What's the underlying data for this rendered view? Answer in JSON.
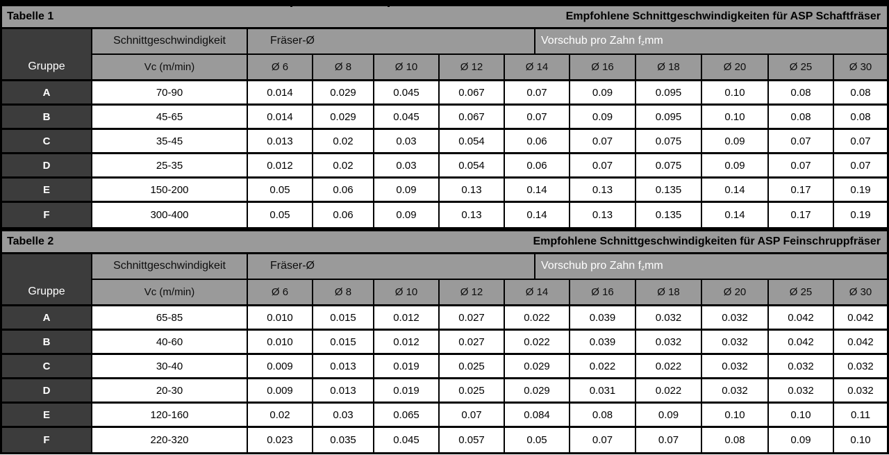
{
  "colors": {
    "header_gray": "#9a9a9a",
    "dark_cell": "#3c3c3c",
    "border": "#000000",
    "data_cell_bg": "#ffffff",
    "white_text": "#ffffff"
  },
  "tables": [
    {
      "tag": "Tabelle 1",
      "title": "Empfohlene Schnittgeschwindigkeiten für ASP Schaftfräser",
      "gruppe_label": "Gruppe",
      "speed_header": "Schnittgeschwindigkeit",
      "vc_header": "Vc (m/min)",
      "fraeser_header": "Fräser-Ø",
      "vorschub_prefix": "Vorschub pro Zahn f",
      "vorschub_sub": "z",
      "vorschub_suffix": " mm",
      "diameters": [
        "Ø 6",
        "Ø 8",
        "Ø 10",
        "Ø 12",
        "Ø 14",
        "Ø 16",
        "Ø 18",
        "Ø 20",
        "Ø 25",
        "Ø 30"
      ],
      "rows": [
        {
          "group": "A",
          "vc": "70-90",
          "values": [
            "0.014",
            "0.029",
            "0.045",
            "0.067",
            "0.07",
            "0.09",
            "0.095",
            "0.10",
            "0.08",
            "0.08"
          ]
        },
        {
          "group": "B",
          "vc": "45-65",
          "values": [
            "0.014",
            "0.029",
            "0.045",
            "0.067",
            "0.07",
            "0.09",
            "0.095",
            "0.10",
            "0.08",
            "0.08"
          ]
        },
        {
          "group": "C",
          "vc": "35-45",
          "values": [
            "0.013",
            "0.02",
            "0.03",
            "0.054",
            "0.06",
            "0.07",
            "0.075",
            "0.09",
            "0.07",
            "0.07"
          ]
        },
        {
          "group": "D",
          "vc": "25-35",
          "values": [
            "0.012",
            "0.02",
            "0.03",
            "0.054",
            "0.06",
            "0.07",
            "0.075",
            "0.09",
            "0.07",
            "0.07"
          ]
        },
        {
          "group": "E",
          "vc": "150-200",
          "values": [
            "0.05",
            "0.06",
            "0.09",
            "0.13",
            "0.14",
            "0.13",
            "0.135",
            "0.14",
            "0.17",
            "0.19"
          ]
        },
        {
          "group": "F",
          "vc": "300-400",
          "values": [
            "0.05",
            "0.06",
            "0.09",
            "0.13",
            "0.14",
            "0.13",
            "0.135",
            "0.14",
            "0.17",
            "0.19"
          ]
        }
      ]
    },
    {
      "tag": "Tabelle 2",
      "title": "Empfohlene Schnittgeschwindigkeiten für ASP Feinschruppfräser",
      "gruppe_label": "Gruppe",
      "speed_header": "Schnittgeschwindigkeit",
      "vc_header": "Vc (m/min)",
      "fraeser_header": "Fräser-Ø",
      "vorschub_prefix": "Vorschub pro Zahn f",
      "vorschub_sub": "z",
      "vorschub_suffix": " mm",
      "diameters": [
        "Ø 6",
        "Ø 8",
        "Ø 10",
        "Ø 12",
        "Ø 14",
        "Ø 16",
        "Ø 18",
        "Ø 20",
        "Ø 25",
        "Ø 30"
      ],
      "rows": [
        {
          "group": "A",
          "vc": "65-85",
          "values": [
            "0.010",
            "0.015",
            "0.012",
            "0.027",
            "0.022",
            "0.039",
            "0.032",
            "0.032",
            "0.042",
            "0.042"
          ]
        },
        {
          "group": "B",
          "vc": "40-60",
          "values": [
            "0.010",
            "0.015",
            "0.012",
            "0.027",
            "0.022",
            "0.039",
            "0.032",
            "0.032",
            "0.042",
            "0.042"
          ]
        },
        {
          "group": "C",
          "vc": "30-40",
          "values": [
            "0.009",
            "0.013",
            "0.019",
            "0.025",
            "0.029",
            "0.022",
            "0.022",
            "0.032",
            "0.032",
            "0.032"
          ]
        },
        {
          "group": "D",
          "vc": "20-30",
          "values": [
            "0.009",
            "0.013",
            "0.019",
            "0.025",
            "0.029",
            "0.031",
            "0.022",
            "0.032",
            "0.032",
            "0.032"
          ]
        },
        {
          "group": "E",
          "vc": "120-160",
          "values": [
            "0.02",
            "0.03",
            "0.065",
            "0.07",
            "0.084",
            "0.08",
            "0.09",
            "0.10",
            "0.10",
            "0.11"
          ]
        },
        {
          "group": "F",
          "vc": "220-320",
          "values": [
            "0.023",
            "0.035",
            "0.045",
            "0.057",
            "0.05",
            "0.07",
            "0.07",
            "0.08",
            "0.09",
            "0.10"
          ]
        }
      ]
    }
  ]
}
